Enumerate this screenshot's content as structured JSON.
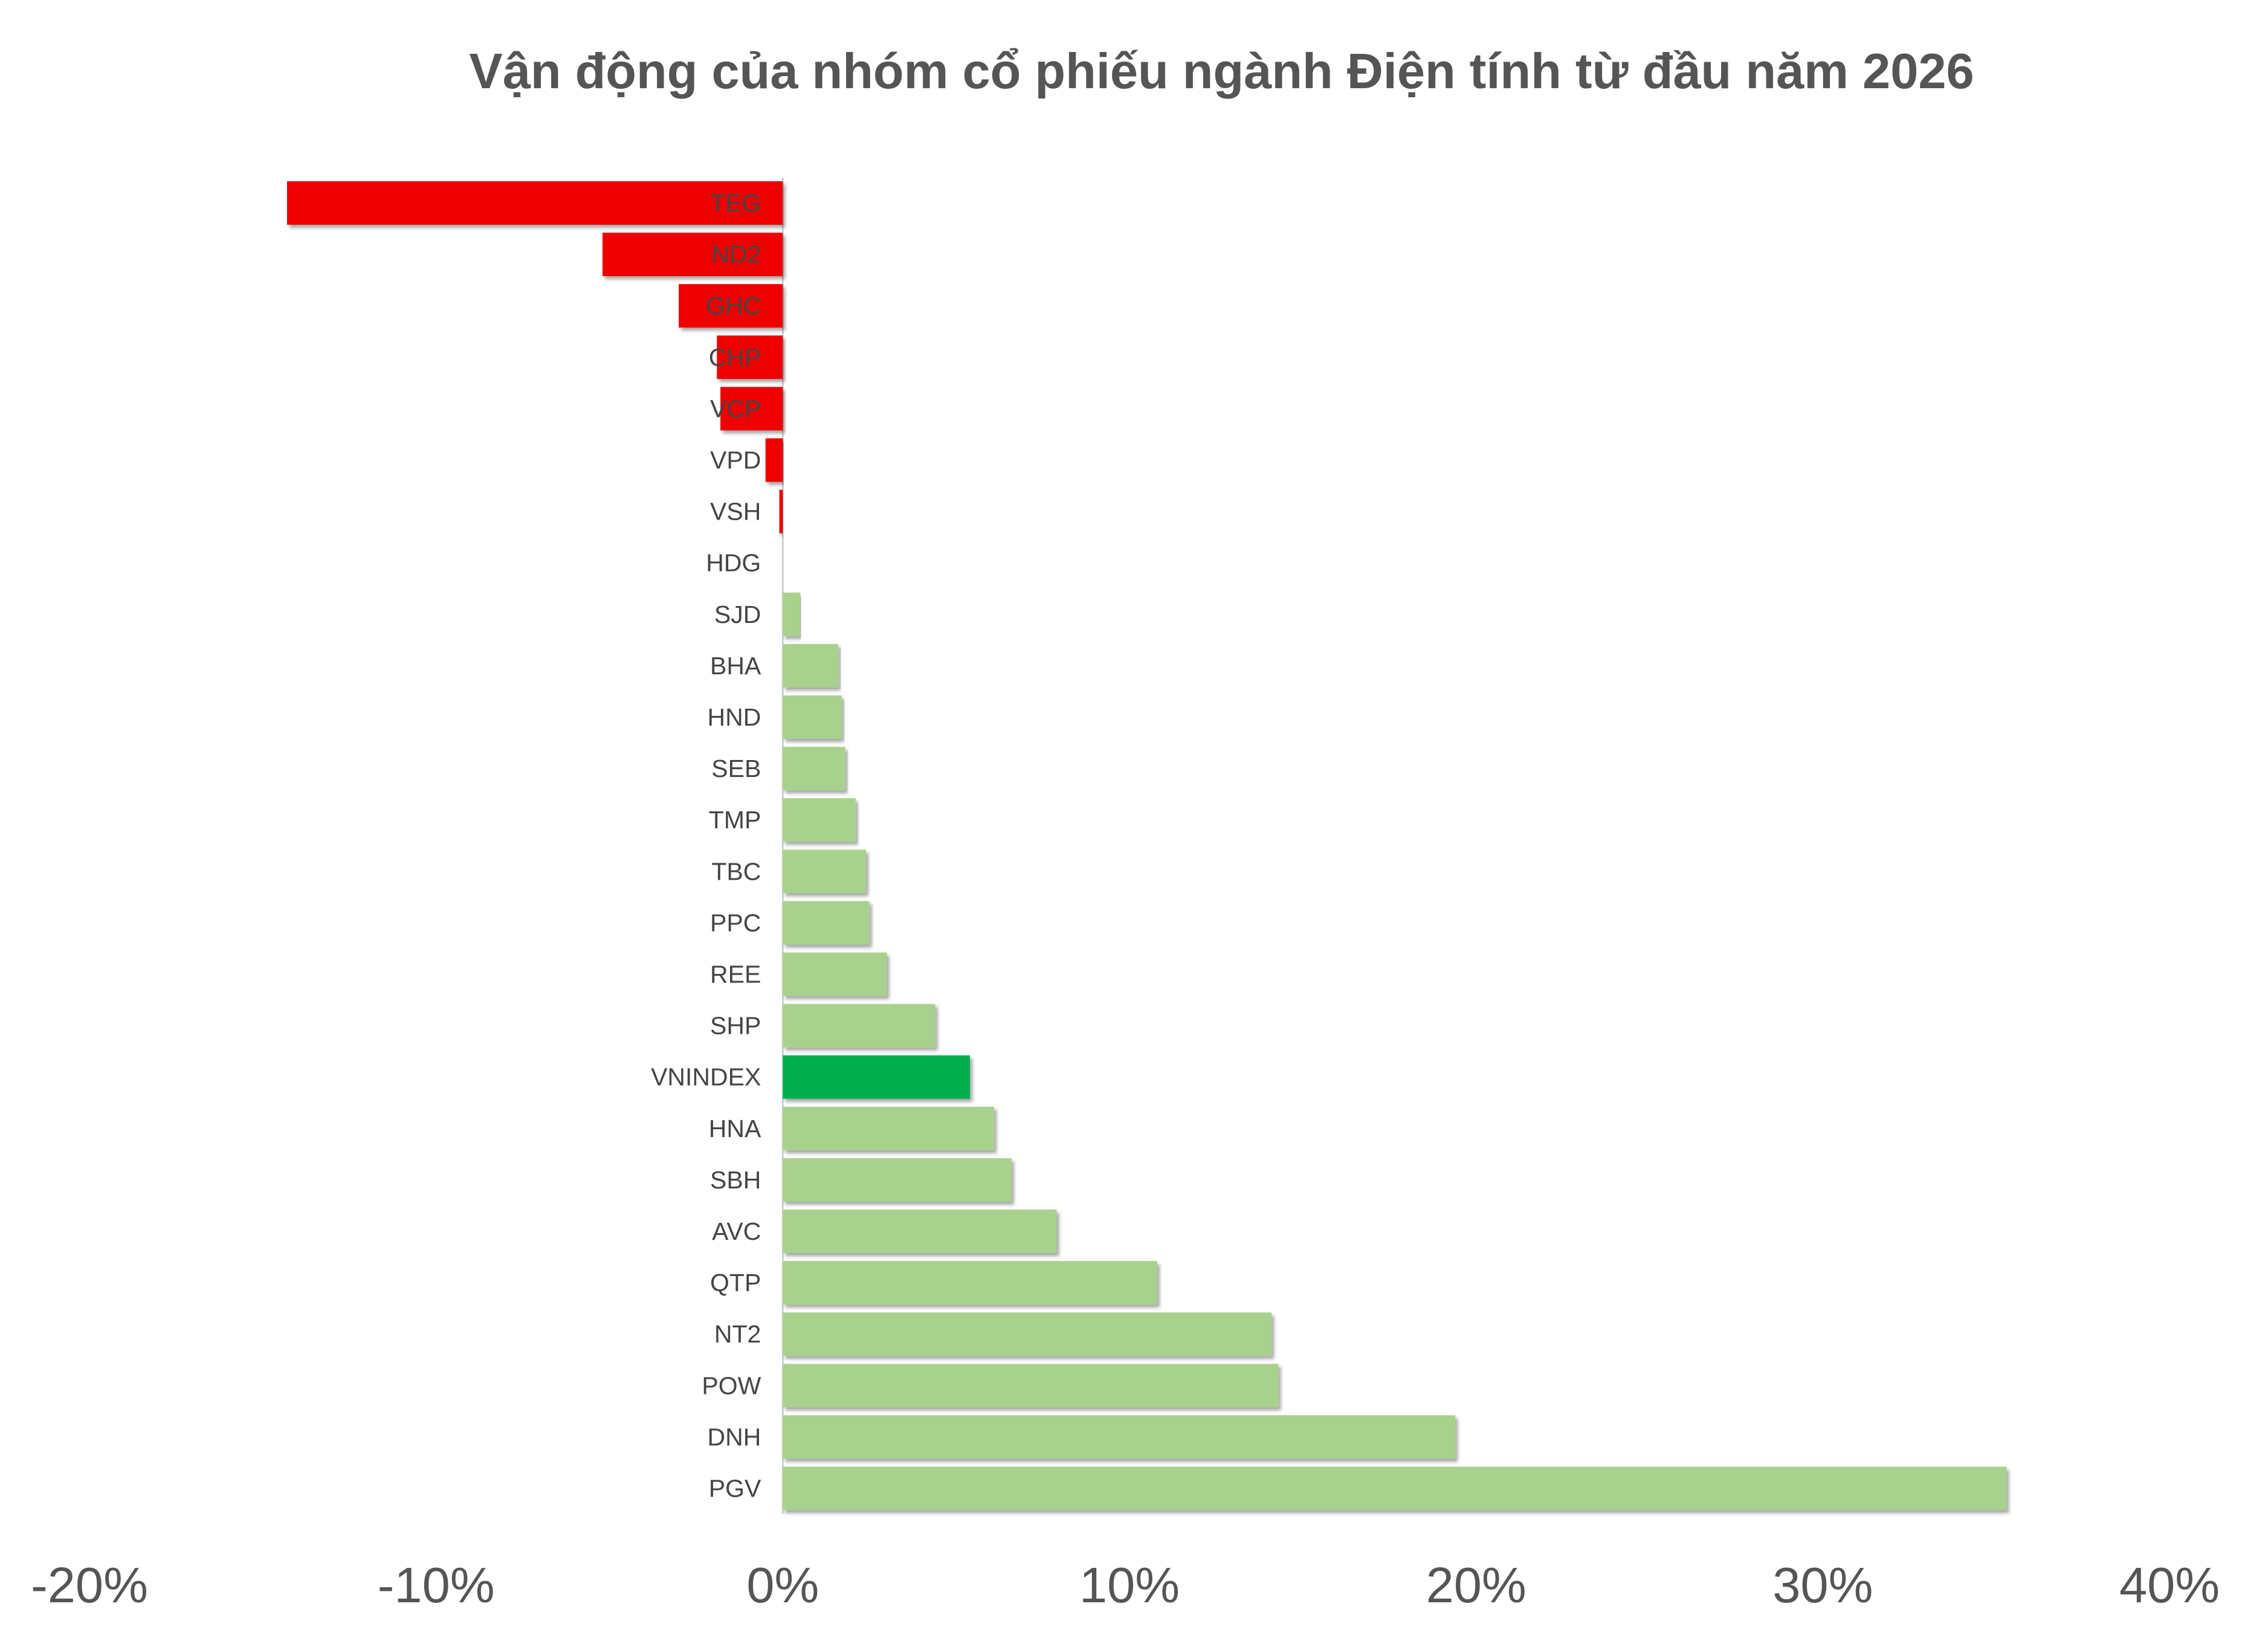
{
  "chart_data": {
    "type": "bar",
    "orientation": "horizontal",
    "title": "Vận động của nhóm cổ phiếu ngành Điện tính từ đầu năm 2026",
    "xlabel": "",
    "ylabel": "",
    "xlim": [
      -20,
      40
    ],
    "x_ticks": [
      "-20%",
      "-10%",
      "0%",
      "10%",
      "20%",
      "30%",
      "40%"
    ],
    "grid": false,
    "legend": "none",
    "colors": {
      "negative": "#EE0000",
      "positive": "#A9D18E",
      "highlight": "#00B050",
      "axis": "#D0D0D0"
    },
    "categories": [
      "TEG",
      "ND2",
      "GHC",
      "CHP",
      "VCP",
      "VPD",
      "VSH",
      "HDG",
      "SJD",
      "BHA",
      "HND",
      "SEB",
      "TMP",
      "TBC",
      "PPC",
      "REE",
      "SHP",
      "VNINDEX",
      "HNA",
      "SBH",
      "AVC",
      "QTP",
      "NT2",
      "POW",
      "DNH",
      "PGV"
    ],
    "values": [
      -14.3,
      -5.2,
      -3.0,
      -1.9,
      -1.8,
      -0.5,
      -0.1,
      0.0,
      0.5,
      1.6,
      1.7,
      1.8,
      2.1,
      2.4,
      2.5,
      3.0,
      4.4,
      5.4,
      6.1,
      6.6,
      7.9,
      10.8,
      14.1,
      14.3,
      19.4,
      35.3
    ],
    "highlight_category": "VNINDEX"
  }
}
